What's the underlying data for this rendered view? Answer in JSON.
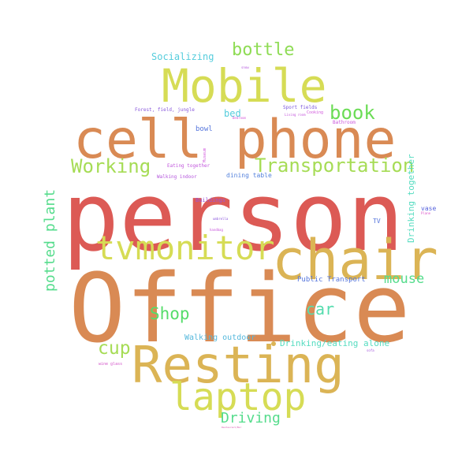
{
  "words": [
    {
      "text": "person",
      "color": "#dc5a55"
    },
    {
      "text": "Office",
      "color": "#d98a54"
    },
    {
      "text": "cell phone",
      "color": "#d98a54"
    },
    {
      "text": "Mobile",
      "color": "#d6dc55"
    },
    {
      "text": "chair",
      "color": "#dbb455"
    },
    {
      "text": "Resting",
      "color": "#dbb455"
    },
    {
      "text": "tvmonitor",
      "color": "#d6dc55"
    },
    {
      "text": "laptop",
      "color": "#d6dc55"
    },
    {
      "text": "Transportation",
      "color": "#a6dc55"
    },
    {
      "text": "Working",
      "color": "#a6dc55"
    },
    {
      "text": "bottle",
      "color": "#8fdc55"
    },
    {
      "text": "book",
      "color": "#6bdc55"
    },
    {
      "text": "potted plant",
      "color": "#55dc8c"
    },
    {
      "text": "mouse",
      "color": "#55dc8c"
    },
    {
      "text": "Shop",
      "color": "#55dc6a"
    },
    {
      "text": "car",
      "color": "#55dcae"
    },
    {
      "text": "cup",
      "color": "#a6dc55"
    },
    {
      "text": "Driving",
      "color": "#55dc8c"
    },
    {
      "text": "Socializing",
      "color": "#55cddc"
    },
    {
      "text": "Drinking together",
      "color": "#55dcc0"
    },
    {
      "text": "Drinking/eating alone",
      "color": "#55dcc0"
    },
    {
      "text": "Walking outdoor",
      "color": "#55b8dc"
    },
    {
      "text": "bed",
      "color": "#55cddc"
    },
    {
      "text": "bowl",
      "color": "#5575dc"
    },
    {
      "text": "dining table",
      "color": "#5582dc"
    },
    {
      "text": "Public Transport",
      "color": "#5575dc"
    },
    {
      "text": "TV",
      "color": "#5575dc"
    },
    {
      "text": "vase",
      "color": "#5562dc"
    },
    {
      "text": "Forest, field, jungle",
      "color": "#8a5adc"
    },
    {
      "text": "Sport fields",
      "color": "#7a55dc"
    },
    {
      "text": "Buildings",
      "color": "#9a55dc"
    },
    {
      "text": "Eating together",
      "color": "#c055dc"
    },
    {
      "text": "Walking indoor",
      "color": "#b455dc"
    },
    {
      "text": "Cooking",
      "color": "#d155dc"
    },
    {
      "text": "Bathroom",
      "color": "#c955dc"
    },
    {
      "text": "Bedroom",
      "color": "#d355d6"
    },
    {
      "text": "Living room",
      "color": "#c455dc"
    },
    {
      "text": "wine glass",
      "color": "#d355c9"
    },
    {
      "text": "sofa",
      "color": "#a355dc"
    },
    {
      "text": "Museum",
      "color": "#d055dc"
    },
    {
      "text": "Plane",
      "color": "#dc55c8"
    },
    {
      "text": "umbrella",
      "color": "#8a55dc"
    },
    {
      "text": "handbag",
      "color": "#c855dc"
    },
    {
      "text": "Restaurant/Bar",
      "color": "#dc55b0"
    },
    {
      "text": "snow",
      "color": "#b455dc"
    }
  ],
  "accent_dot_color": "#dbb455"
}
